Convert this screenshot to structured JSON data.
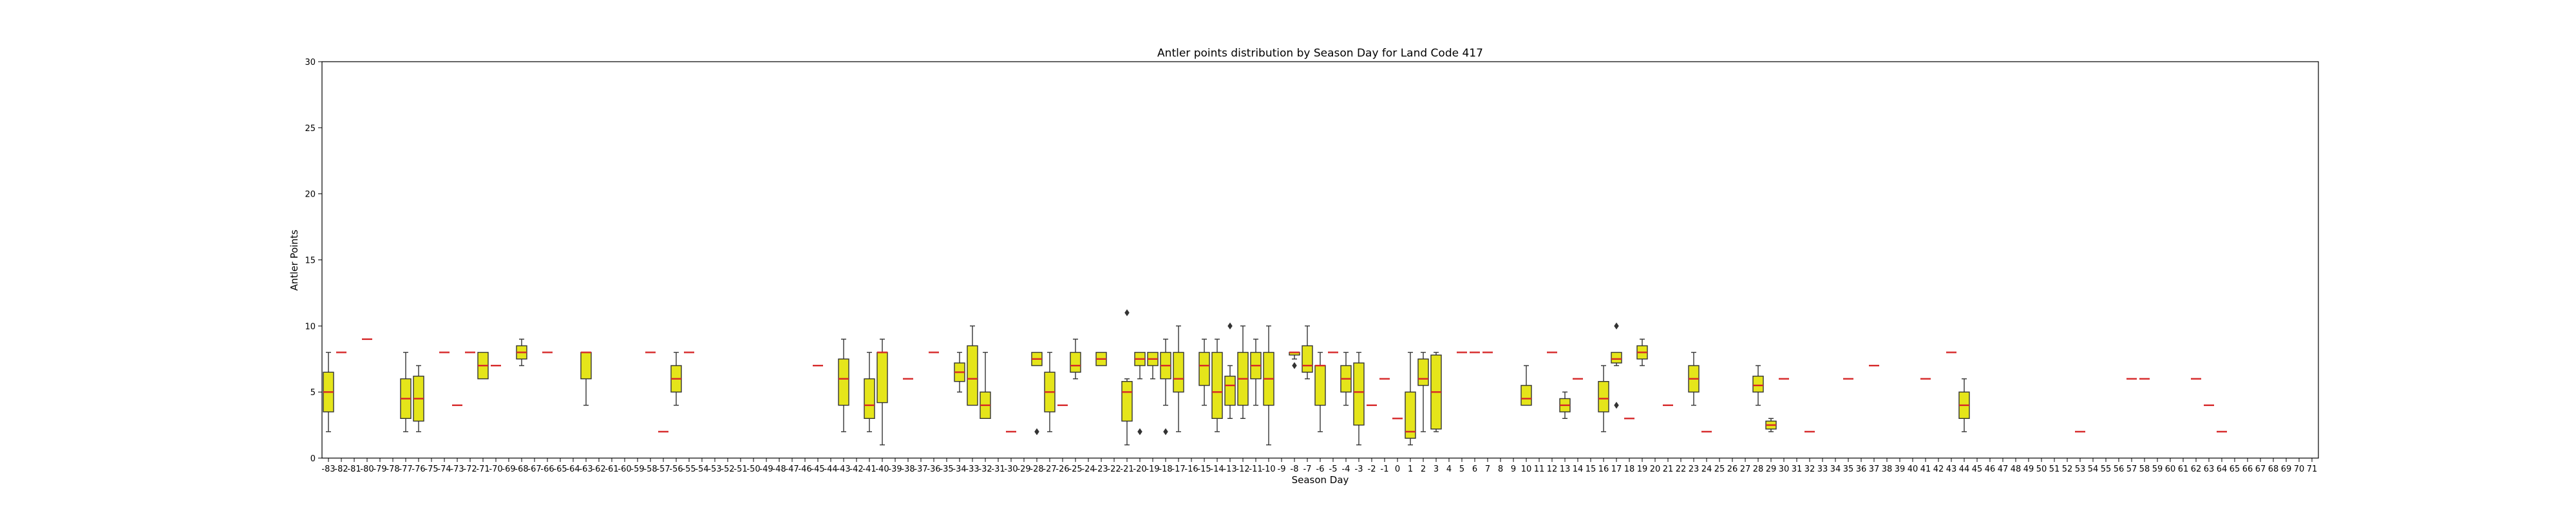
{
  "chart_data": {
    "type": "box",
    "title": "Antler points distribution by Season Day for Land Code 417",
    "xlabel": "Season Day",
    "ylabel": "Antler Points",
    "ylim": [
      0,
      30
    ],
    "yticks": [
      0,
      5,
      10,
      15,
      20,
      25,
      30
    ],
    "x_categories_range": [
      -83,
      71
    ],
    "grid": false,
    "colors": {
      "box_fill": "#e5e51a",
      "median": "#d62728",
      "edge": "#333333"
    },
    "boxes": [
      {
        "day": -83,
        "min": 2,
        "q1": 3.5,
        "median": 5,
        "q3": 6.5,
        "max": 8,
        "outliers": []
      },
      {
        "day": -82,
        "min": 8,
        "q1": 8,
        "median": 8,
        "q3": 8,
        "max": 8,
        "outliers": []
      },
      {
        "day": -80,
        "min": 9,
        "q1": 9,
        "median": 9,
        "q3": 9,
        "max": 9,
        "outliers": []
      },
      {
        "day": -77,
        "min": 2,
        "q1": 3,
        "median": 4.5,
        "q3": 6,
        "max": 8,
        "outliers": []
      },
      {
        "day": -76,
        "min": 2,
        "q1": 2.8,
        "median": 4.5,
        "q3": 6.2,
        "max": 7,
        "outliers": []
      },
      {
        "day": -74,
        "min": 8,
        "q1": 8,
        "median": 8,
        "q3": 8,
        "max": 8,
        "outliers": []
      },
      {
        "day": -73,
        "min": 4,
        "q1": 4,
        "median": 4,
        "q3": 4,
        "max": 4,
        "outliers": []
      },
      {
        "day": -72,
        "min": 8,
        "q1": 8,
        "median": 8,
        "q3": 8,
        "max": 8,
        "outliers": []
      },
      {
        "day": -71,
        "min": 6,
        "q1": 6,
        "median": 7,
        "q3": 8,
        "max": 8,
        "outliers": []
      },
      {
        "day": -70,
        "min": 7,
        "q1": 7,
        "median": 7,
        "q3": 7,
        "max": 7,
        "outliers": []
      },
      {
        "day": -68,
        "min": 7,
        "q1": 7.5,
        "median": 8,
        "q3": 8.5,
        "max": 9,
        "outliers": []
      },
      {
        "day": -66,
        "min": 8,
        "q1": 8,
        "median": 8,
        "q3": 8,
        "max": 8,
        "outliers": []
      },
      {
        "day": -63,
        "min": 4,
        "q1": 6,
        "median": 8,
        "q3": 8,
        "max": 8,
        "outliers": []
      },
      {
        "day": -58,
        "min": 8,
        "q1": 8,
        "median": 8,
        "q3": 8,
        "max": 8,
        "outliers": []
      },
      {
        "day": -57,
        "min": 2,
        "q1": 2,
        "median": 2,
        "q3": 2,
        "max": 2,
        "outliers": []
      },
      {
        "day": -56,
        "min": 4,
        "q1": 5,
        "median": 6,
        "q3": 7,
        "max": 8,
        "outliers": []
      },
      {
        "day": -55,
        "min": 8,
        "q1": 8,
        "median": 8,
        "q3": 8,
        "max": 8,
        "outliers": []
      },
      {
        "day": -45,
        "min": 7,
        "q1": 7,
        "median": 7,
        "q3": 7,
        "max": 7,
        "outliers": []
      },
      {
        "day": -43,
        "min": 2,
        "q1": 4,
        "median": 6,
        "q3": 7.5,
        "max": 9,
        "outliers": []
      },
      {
        "day": -41,
        "min": 2,
        "q1": 3,
        "median": 4,
        "q3": 6,
        "max": 8,
        "outliers": []
      },
      {
        "day": -40,
        "min": 1,
        "q1": 4.2,
        "median": 8,
        "q3": 8,
        "max": 9,
        "outliers": []
      },
      {
        "day": -38,
        "min": 6,
        "q1": 6,
        "median": 6,
        "q3": 6,
        "max": 6,
        "outliers": []
      },
      {
        "day": -36,
        "min": 8,
        "q1": 8,
        "median": 8,
        "q3": 8,
        "max": 8,
        "outliers": []
      },
      {
        "day": -34,
        "min": 5,
        "q1": 5.8,
        "median": 6.5,
        "q3": 7.2,
        "max": 8,
        "outliers": []
      },
      {
        "day": -33,
        "min": 4,
        "q1": 4,
        "median": 6,
        "q3": 8.5,
        "max": 10,
        "outliers": []
      },
      {
        "day": -32,
        "min": 3,
        "q1": 3,
        "median": 4,
        "q3": 5,
        "max": 8,
        "outliers": []
      },
      {
        "day": -30,
        "min": 2,
        "q1": 2,
        "median": 2,
        "q3": 2,
        "max": 2,
        "outliers": []
      },
      {
        "day": -28,
        "min": 7,
        "q1": 7,
        "median": 7.5,
        "q3": 8,
        "max": 8,
        "outliers": [
          2
        ]
      },
      {
        "day": -27,
        "min": 2,
        "q1": 3.5,
        "median": 5,
        "q3": 6.5,
        "max": 8,
        "outliers": []
      },
      {
        "day": -26,
        "min": 4,
        "q1": 4,
        "median": 4,
        "q3": 4,
        "max": 4,
        "outliers": []
      },
      {
        "day": -25,
        "min": 6,
        "q1": 6.5,
        "median": 7,
        "q3": 8,
        "max": 9,
        "outliers": []
      },
      {
        "day": -23,
        "min": 7,
        "q1": 7,
        "median": 7.5,
        "q3": 8,
        "max": 8,
        "outliers": []
      },
      {
        "day": -21,
        "min": 1,
        "q1": 2.8,
        "median": 5,
        "q3": 5.8,
        "max": 6,
        "outliers": [
          11
        ]
      },
      {
        "day": -20,
        "min": 6,
        "q1": 7,
        "median": 7.5,
        "q3": 8,
        "max": 8,
        "outliers": [
          2
        ]
      },
      {
        "day": -19,
        "min": 6,
        "q1": 7,
        "median": 7.5,
        "q3": 8,
        "max": 8,
        "outliers": []
      },
      {
        "day": -18,
        "min": 4,
        "q1": 6,
        "median": 7,
        "q3": 8,
        "max": 9,
        "outliers": [
          2
        ]
      },
      {
        "day": -17,
        "min": 2,
        "q1": 5,
        "median": 6,
        "q3": 8,
        "max": 10,
        "outliers": []
      },
      {
        "day": -15,
        "min": 4,
        "q1": 5.5,
        "median": 7,
        "q3": 8,
        "max": 9,
        "outliers": []
      },
      {
        "day": -14,
        "min": 2,
        "q1": 3,
        "median": 5,
        "q3": 8,
        "max": 9,
        "outliers": []
      },
      {
        "day": -13,
        "min": 3,
        "q1": 4,
        "median": 5.5,
        "q3": 6.2,
        "max": 7,
        "outliers": [
          10
        ]
      },
      {
        "day": -12,
        "min": 3,
        "q1": 4,
        "median": 6,
        "q3": 8,
        "max": 10,
        "outliers": []
      },
      {
        "day": -11,
        "min": 4,
        "q1": 6,
        "median": 7,
        "q3": 8,
        "max": 9,
        "outliers": []
      },
      {
        "day": -10,
        "min": 1,
        "q1": 4,
        "median": 6,
        "q3": 8,
        "max": 10,
        "outliers": []
      },
      {
        "day": -8,
        "min": 7.5,
        "q1": 7.8,
        "median": 8,
        "q3": 8,
        "max": 8,
        "outliers": [
          7
        ]
      },
      {
        "day": -7,
        "min": 6,
        "q1": 6.5,
        "median": 7,
        "q3": 8.5,
        "max": 10,
        "outliers": []
      },
      {
        "day": -6,
        "min": 2,
        "q1": 4,
        "median": 7,
        "q3": 7,
        "max": 8,
        "outliers": []
      },
      {
        "day": -5,
        "min": 8,
        "q1": 8,
        "median": 8,
        "q3": 8,
        "max": 8,
        "outliers": []
      },
      {
        "day": -4,
        "min": 4,
        "q1": 5,
        "median": 6,
        "q3": 7,
        "max": 8,
        "outliers": []
      },
      {
        "day": -3,
        "min": 1,
        "q1": 2.5,
        "median": 5,
        "q3": 7.2,
        "max": 8,
        "outliers": []
      },
      {
        "day": -2,
        "min": 4,
        "q1": 4,
        "median": 4,
        "q3": 4,
        "max": 4,
        "outliers": []
      },
      {
        "day": -1,
        "min": 6,
        "q1": 6,
        "median": 6,
        "q3": 6,
        "max": 6,
        "outliers": []
      },
      {
        "day": 0,
        "min": 3,
        "q1": 3,
        "median": 3,
        "q3": 3,
        "max": 3,
        "outliers": []
      },
      {
        "day": 1,
        "min": 1,
        "q1": 1.5,
        "median": 2,
        "q3": 5,
        "max": 8,
        "outliers": []
      },
      {
        "day": 2,
        "min": 2,
        "q1": 5.5,
        "median": 6,
        "q3": 7.5,
        "max": 8,
        "outliers": []
      },
      {
        "day": 3,
        "min": 2,
        "q1": 2.2,
        "median": 5,
        "q3": 7.8,
        "max": 8,
        "outliers": []
      },
      {
        "day": 5,
        "min": 8,
        "q1": 8,
        "median": 8,
        "q3": 8,
        "max": 8,
        "outliers": []
      },
      {
        "day": 6,
        "min": 8,
        "q1": 8,
        "median": 8,
        "q3": 8,
        "max": 8,
        "outliers": []
      },
      {
        "day": 7,
        "min": 8,
        "q1": 8,
        "median": 8,
        "q3": 8,
        "max": 8,
        "outliers": []
      },
      {
        "day": 10,
        "min": 4,
        "q1": 4,
        "median": 4.5,
        "q3": 5.5,
        "max": 7,
        "outliers": []
      },
      {
        "day": 12,
        "min": 8,
        "q1": 8,
        "median": 8,
        "q3": 8,
        "max": 8,
        "outliers": []
      },
      {
        "day": 13,
        "min": 3,
        "q1": 3.5,
        "median": 4,
        "q3": 4.5,
        "max": 5,
        "outliers": []
      },
      {
        "day": 14,
        "min": 6,
        "q1": 6,
        "median": 6,
        "q3": 6,
        "max": 6,
        "outliers": []
      },
      {
        "day": 16,
        "min": 2,
        "q1": 3.5,
        "median": 4.5,
        "q3": 5.8,
        "max": 7,
        "outliers": []
      },
      {
        "day": 17,
        "min": 7,
        "q1": 7.2,
        "median": 7.5,
        "q3": 8,
        "max": 8,
        "outliers": [
          10,
          4
        ]
      },
      {
        "day": 18,
        "min": 3,
        "q1": 3,
        "median": 3,
        "q3": 3,
        "max": 3,
        "outliers": []
      },
      {
        "day": 19,
        "min": 7,
        "q1": 7.5,
        "median": 8,
        "q3": 8.5,
        "max": 9,
        "outliers": []
      },
      {
        "day": 21,
        "min": 4,
        "q1": 4,
        "median": 4,
        "q3": 4,
        "max": 4,
        "outliers": []
      },
      {
        "day": 23,
        "min": 4,
        "q1": 5,
        "median": 6,
        "q3": 7,
        "max": 8,
        "outliers": []
      },
      {
        "day": 24,
        "min": 2,
        "q1": 2,
        "median": 2,
        "q3": 2,
        "max": 2,
        "outliers": []
      },
      {
        "day": 28,
        "min": 4,
        "q1": 5,
        "median": 5.5,
        "q3": 6.2,
        "max": 7,
        "outliers": []
      },
      {
        "day": 29,
        "min": 2,
        "q1": 2.2,
        "median": 2.5,
        "q3": 2.8,
        "max": 3,
        "outliers": []
      },
      {
        "day": 30,
        "min": 6,
        "q1": 6,
        "median": 6,
        "q3": 6,
        "max": 6,
        "outliers": []
      },
      {
        "day": 32,
        "min": 2,
        "q1": 2,
        "median": 2,
        "q3": 2,
        "max": 2,
        "outliers": []
      },
      {
        "day": 35,
        "min": 6,
        "q1": 6,
        "median": 6,
        "q3": 6,
        "max": 6,
        "outliers": []
      },
      {
        "day": 37,
        "min": 7,
        "q1": 7,
        "median": 7,
        "q3": 7,
        "max": 7,
        "outliers": []
      },
      {
        "day": 41,
        "min": 6,
        "q1": 6,
        "median": 6,
        "q3": 6,
        "max": 6,
        "outliers": []
      },
      {
        "day": 43,
        "min": 8,
        "q1": 8,
        "median": 8,
        "q3": 8,
        "max": 8,
        "outliers": []
      },
      {
        "day": 44,
        "min": 2,
        "q1": 3,
        "median": 4,
        "q3": 5,
        "max": 6,
        "outliers": []
      },
      {
        "day": 53,
        "min": 2,
        "q1": 2,
        "median": 2,
        "q3": 2,
        "max": 2,
        "outliers": []
      },
      {
        "day": 57,
        "min": 6,
        "q1": 6,
        "median": 6,
        "q3": 6,
        "max": 6,
        "outliers": []
      },
      {
        "day": 58,
        "min": 6,
        "q1": 6,
        "median": 6,
        "q3": 6,
        "max": 6,
        "outliers": []
      },
      {
        "day": 62,
        "min": 6,
        "q1": 6,
        "median": 6,
        "q3": 6,
        "max": 6,
        "outliers": []
      },
      {
        "day": 63,
        "min": 4,
        "q1": 4,
        "median": 4,
        "q3": 4,
        "max": 4,
        "outliers": []
      },
      {
        "day": 64,
        "min": 2,
        "q1": 2,
        "median": 2,
        "q3": 2,
        "max": 2,
        "outliers": []
      }
    ]
  }
}
